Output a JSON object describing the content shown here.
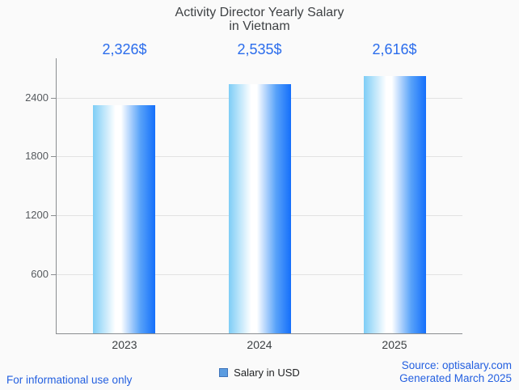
{
  "title_lines": [
    "Activity Director Yearly Salary",
    "in Vietnam"
  ],
  "legend": {
    "label": "Salary in USD"
  },
  "footer": {
    "left_note": "For informational use only",
    "source_line1": "Source: optisalary.com",
    "source_line2": "Generated March 2025"
  },
  "colors": {
    "background": "#fafafa",
    "accent_blue_text": "#2a6cec",
    "footer_blue_text": "#2460e0",
    "bar_gradient_left": "#7ecdf6",
    "bar_gradient_mid": "#ffffff",
    "bar_gradient_right": "#146ffb",
    "legend_swatch_fill": "#5b9ce0",
    "legend_swatch_border": "#3f74ba",
    "grid": "#e2e2e2",
    "axis": "#8a8d90",
    "title_text": "#3f4245",
    "ytick_text": "#565a5e",
    "xtick_text": "#3c4043"
  },
  "chart_data": {
    "type": "bar",
    "title": "Activity Director Yearly Salary in Vietnam",
    "categories": [
      "2023",
      "2024",
      "2025"
    ],
    "values": [
      2326,
      2535,
      2616
    ],
    "value_labels": [
      "2,326$",
      "2,535$",
      "2,616$"
    ],
    "series": [
      {
        "name": "Salary in USD",
        "values": [
          2326,
          2535,
          2616
        ]
      }
    ],
    "xlabel": "",
    "ylabel": "",
    "yticks": [
      600,
      1200,
      1800,
      2400
    ],
    "ylim": [
      0,
      2800
    ],
    "grid": true,
    "legend_position": "bottom-center",
    "value_label_position": "fixed-row-above-plot"
  }
}
